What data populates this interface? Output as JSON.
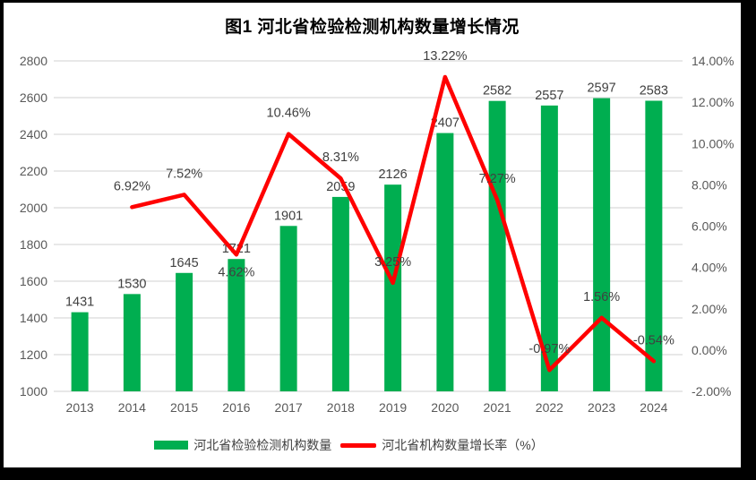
{
  "title": "图1 河北省检验检测机构数量增长情况",
  "colors": {
    "bar_green": "#00AE50",
    "line_red": "#FF0000",
    "gridline": "#D9D9D9",
    "axis_text": "#595959",
    "data_label_text": "#404040",
    "chart_background": "#FFFFFF",
    "frame_background": "#000000"
  },
  "legend": {
    "bar_label": "河北省检验检测机构数量",
    "line_label": "河北省机构数量增长率（%）"
  },
  "chart_data": {
    "type": "combo_bar_line",
    "title": "图1 河北省检验检测机构数量增长情况",
    "categories": [
      "2013",
      "2014",
      "2015",
      "2016",
      "2017",
      "2018",
      "2019",
      "2020",
      "2021",
      "2022",
      "2023",
      "2024"
    ],
    "series": [
      {
        "name": "河北省检验检测机构数量",
        "type": "bar",
        "axis": "left",
        "values": [
          1431,
          1530,
          1645,
          1721,
          1901,
          2059,
          2126,
          2407,
          2582,
          2557,
          2597,
          2583
        ],
        "value_labels": [
          "1431",
          "1530",
          "1645",
          "1721",
          "1901",
          "2059",
          "2126",
          "2407",
          "2582",
          "2557",
          "2597",
          "2583"
        ]
      },
      {
        "name": "河北省机构数量增长率（%）",
        "type": "line",
        "axis": "right",
        "values": [
          null,
          6.92,
          7.52,
          4.62,
          10.46,
          8.31,
          3.25,
          13.22,
          7.27,
          -0.97,
          1.56,
          -0.54
        ],
        "point_labels": [
          null,
          "6.92%",
          "7.52%",
          "4.62%",
          "10.46%",
          "8.31%",
          "3.25%",
          "13.22%",
          "7.27%",
          "-0.97%",
          "1.56%",
          "-0.54%"
        ],
        "labels_below_indices": [
          3
        ]
      }
    ],
    "left_axis": {
      "min": 1000,
      "max": 2800,
      "step": 200,
      "tick_labels": [
        "1000",
        "1200",
        "1400",
        "1600",
        "1800",
        "2000",
        "2200",
        "2400",
        "2600",
        "2800"
      ]
    },
    "right_axis": {
      "min": -2,
      "max": 14,
      "step": 2,
      "tick_labels": [
        "-2.00%",
        "0.00%",
        "2.00%",
        "4.00%",
        "6.00%",
        "8.00%",
        "10.00%",
        "12.00%",
        "14.00%"
      ]
    },
    "grid": true,
    "legend_position": "bottom"
  }
}
